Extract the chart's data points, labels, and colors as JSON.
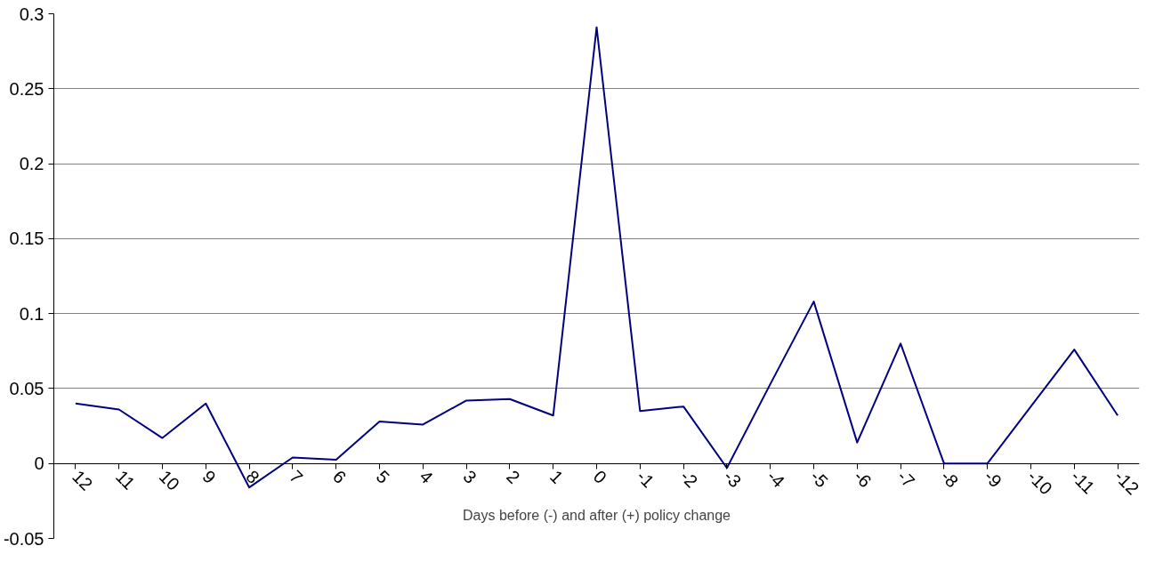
{
  "chart_data": {
    "type": "line",
    "xlabel": "Days before (-) and after (+) policy change",
    "categories": [
      "12",
      "11",
      "10",
      "9",
      "8",
      "7",
      "6",
      "5",
      "4",
      "3",
      "2",
      "1",
      "0",
      "-1",
      "-2",
      "-3",
      "-4",
      "-5",
      "-6",
      "-7",
      "-8",
      "-9",
      "-10",
      "-11",
      "-12"
    ],
    "series": [
      {
        "color": "#000080",
        "values": [
          0.04,
          0.036,
          0.017,
          0.04,
          -0.016,
          0.004,
          0.0025,
          0.028,
          0.026,
          0.042,
          0.043,
          0.032,
          0.291,
          0.035,
          0.038,
          -0.003,
          0.053,
          0.108,
          0.014,
          0.08,
          0.0,
          0.0,
          0.038,
          0.076,
          0.032
        ]
      }
    ],
    "ylim": [
      -0.05,
      0.3
    ],
    "yticks": [
      {
        "value": -0.05,
        "label": "-0.05"
      },
      0,
      0.05,
      0.1,
      0.15,
      0.2,
      0.25,
      0.3
    ],
    "grid": "y",
    "marker": "none",
    "line_style": "solid"
  }
}
